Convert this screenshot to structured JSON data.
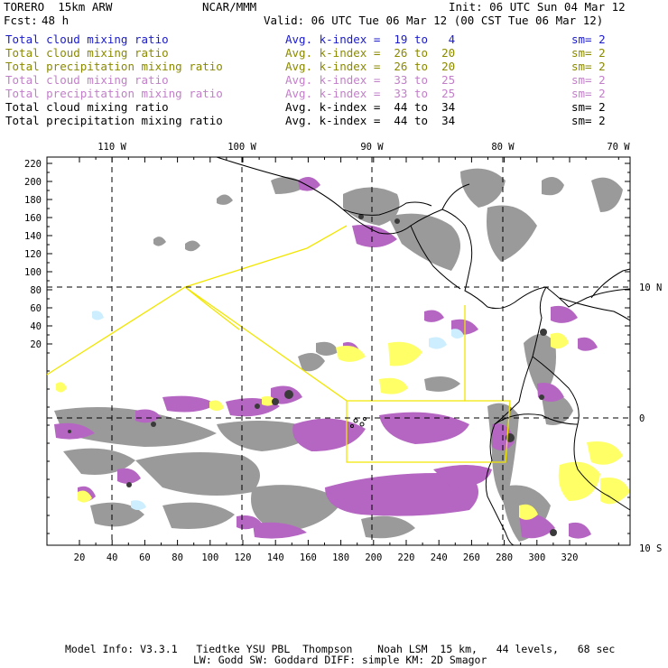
{
  "header": {
    "model": "TORERO  15km ARW",
    "center": "NCAR/MMM",
    "init": "Init: 06 UTC Sun 04 Mar 12",
    "fcst_label": "Fcst:",
    "fcst_value": "48 h",
    "valid": "Valid: 06 UTC Tue 06 Mar 12 (00 CST Tue 06 Mar 12)"
  },
  "legend": [
    {
      "field": "Total cloud mixing ratio",
      "index": "Avg. k-index =  19 to   4",
      "sm": "sm= 2",
      "color": "#1a1acc"
    },
    {
      "field": "Total cloud mixing ratio",
      "index": "Avg. k-index =  26 to  20",
      "sm": "sm= 2",
      "color": "#8a8a00"
    },
    {
      "field": "Total precipitation mixing ratio",
      "index": "Avg. k-index =  26 to  20",
      "sm": "sm= 2",
      "color": "#8a8a00"
    },
    {
      "field": "Total cloud mixing ratio",
      "index": "Avg. k-index =  33 to  25",
      "sm": "sm= 2",
      "color": "#c27fc9"
    },
    {
      "field": "Total precipitation mixing ratio",
      "index": "Avg. k-index =  33 to  25",
      "sm": "sm= 2",
      "color": "#c27fc9"
    },
    {
      "field": "Total cloud mixing ratio",
      "index": "Avg. k-index =  44 to  34",
      "sm": "sm= 2",
      "color": "#000000"
    },
    {
      "field": "Total precipitation mixing ratio",
      "index": "Avg. k-index =  44 to  34",
      "sm": "sm= 2",
      "color": "#000000"
    }
  ],
  "map": {
    "lon_labels": [
      "110 W",
      "100 W",
      "90 W",
      "80 W",
      "70 W"
    ],
    "lat_labels": [
      "10 N",
      "0",
      "10 S"
    ],
    "y_ticks": [
      "220",
      "200",
      "180",
      "160",
      "140",
      "120",
      "100",
      "80",
      "60",
      "40",
      "20"
    ],
    "x_ticks": [
      "20",
      "40",
      "60",
      "80",
      "100",
      "120",
      "140",
      "160",
      "180",
      "200",
      "220",
      "240",
      "260",
      "280",
      "300",
      "320"
    ]
  },
  "footer": {
    "line1": "Model Info: V3.3.1   Tiedtke YSU PBL  Thompson    Noah LSM  15 km,   44 levels,   68 sec",
    "line2": "LW: Godd SW: Goddard DIFF: simple KM: 2D Smagor"
  },
  "colors": {
    "cloud_gray": "#9a9a9a",
    "dark_core": "#3a3a3a",
    "purple": "#b565c2",
    "yellow": "#ffff66",
    "cyan": "#cdeeff",
    "yellow_line": "#f2e600"
  }
}
